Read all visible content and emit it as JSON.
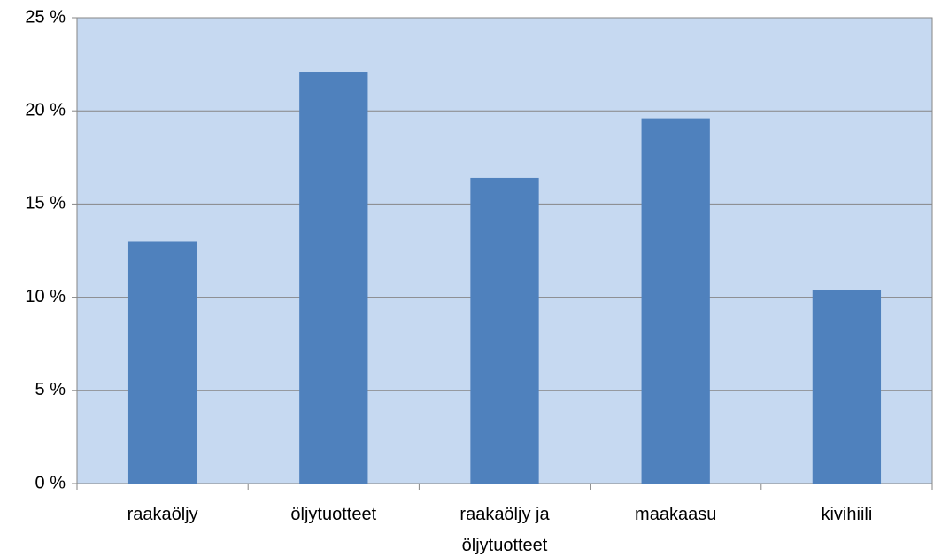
{
  "chart_data": {
    "type": "bar",
    "categories": [
      "raakaöljy",
      "öljytuotteet",
      "raakaöljy ja öljytuotteet",
      "maakaasu",
      "kivihiili"
    ],
    "values": [
      13.0,
      22.1,
      16.4,
      19.6,
      10.4
    ],
    "color": "#4f81bd",
    "ylim": [
      0,
      25
    ],
    "yticks": [
      {
        "value": 0,
        "label": "0 %"
      },
      {
        "value": 5,
        "label": "5 %"
      },
      {
        "value": 10,
        "label": "10 %"
      },
      {
        "value": 15,
        "label": "15 %"
      },
      {
        "value": 20,
        "label": "20 %"
      },
      {
        "value": 25,
        "label": "25 %"
      }
    ],
    "grid": true
  }
}
